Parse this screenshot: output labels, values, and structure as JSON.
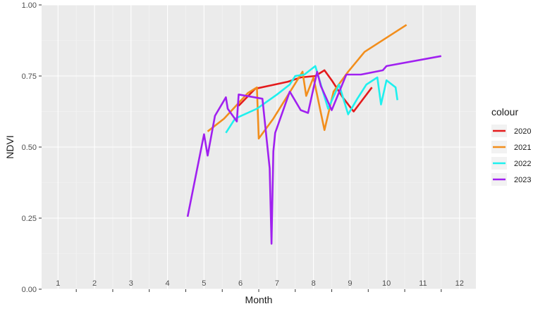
{
  "chart_data": {
    "type": "line",
    "title": "",
    "xlabel": "Month",
    "ylabel": "NDVI",
    "xlim": [
      0.55,
      12.45
    ],
    "ylim": [
      0,
      1
    ],
    "x_ticks": [
      1,
      2,
      3,
      4,
      5,
      6,
      7,
      8,
      9,
      10,
      11,
      12
    ],
    "x_tick_labels": [
      "1",
      "2",
      "3",
      "4",
      "5",
      "6",
      "7",
      "8",
      "9",
      "10",
      "11",
      "12"
    ],
    "y_ticks": [
      0,
      0.25,
      0.5,
      0.75,
      1.0
    ],
    "y_tick_labels": [
      "0.00",
      "0.25",
      "0.50",
      "0.75",
      "1.00"
    ],
    "grid": true,
    "legend": {
      "title": "colour",
      "position": "right"
    },
    "series": [
      {
        "name": "2020",
        "color": "#e41a1c",
        "x": [
          5.95,
          6.4,
          7.3,
          7.65,
          8.05,
          8.3,
          8.5,
          8.8,
          9.1,
          9.6
        ],
        "y": [
          0.645,
          0.705,
          0.73,
          0.745,
          0.75,
          0.77,
          0.735,
          0.675,
          0.625,
          0.71
        ]
      },
      {
        "name": "2021",
        "color": "#f28e1c",
        "x": [
          5.1,
          5.55,
          6.2,
          6.45,
          6.5,
          6.9,
          7.7,
          7.8,
          8.0,
          8.3,
          8.55,
          8.95,
          9.4,
          10.55
        ],
        "y": [
          0.555,
          0.6,
          0.69,
          0.71,
          0.53,
          0.6,
          0.765,
          0.68,
          0.745,
          0.56,
          0.695,
          0.765,
          0.835,
          0.93
        ]
      },
      {
        "name": "2022",
        "color": "#1ef0ee",
        "x": [
          5.6,
          5.85,
          6.45,
          7.0,
          7.35,
          7.5,
          7.75,
          8.05,
          8.4,
          8.7,
          8.95,
          9.2,
          9.45,
          9.75,
          9.85,
          10.0,
          10.25,
          10.3
        ],
        "y": [
          0.55,
          0.6,
          0.635,
          0.685,
          0.72,
          0.75,
          0.755,
          0.785,
          0.635,
          0.72,
          0.615,
          0.67,
          0.72,
          0.745,
          0.65,
          0.735,
          0.71,
          0.665
        ]
      },
      {
        "name": "2023",
        "color": "#a020f0",
        "x": [
          4.55,
          5.0,
          5.1,
          5.3,
          5.6,
          5.65,
          5.9,
          5.95,
          6.6,
          6.8,
          6.85,
          6.9,
          6.95,
          7.35,
          7.65,
          7.85,
          8.1,
          8.2,
          8.5,
          8.9,
          9.3,
          9.9,
          10.0,
          11.5
        ],
        "y": [
          0.255,
          0.545,
          0.47,
          0.61,
          0.675,
          0.635,
          0.59,
          0.685,
          0.67,
          0.425,
          0.16,
          0.485,
          0.55,
          0.695,
          0.63,
          0.62,
          0.765,
          0.715,
          0.63,
          0.755,
          0.755,
          0.77,
          0.785,
          0.82
        ]
      }
    ]
  }
}
